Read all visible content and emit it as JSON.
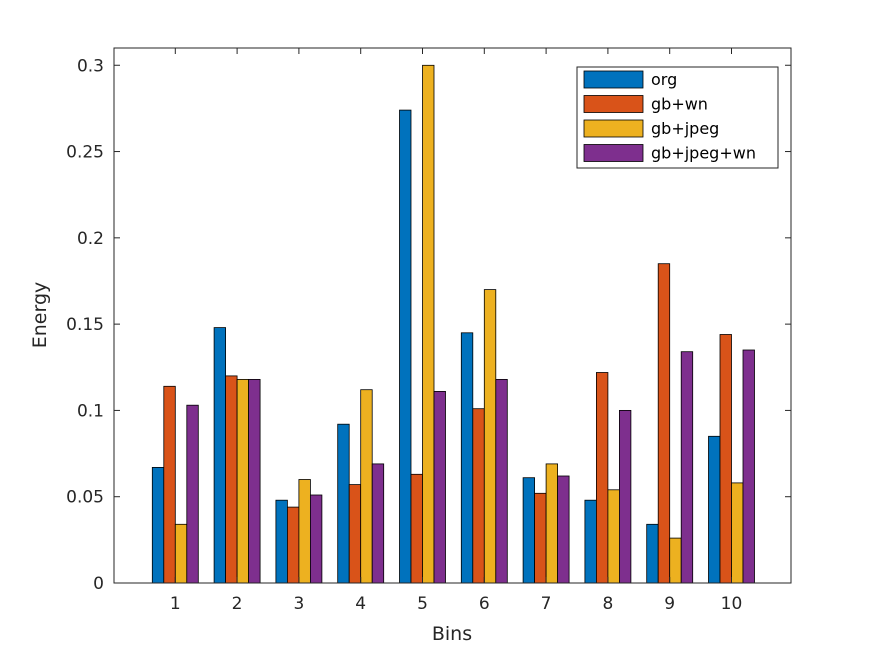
{
  "chart_data": {
    "type": "bar",
    "title": "",
    "xlabel": "Bins",
    "ylabel": "Energy",
    "categories": [
      "1",
      "2",
      "3",
      "4",
      "5",
      "6",
      "7",
      "8",
      "9",
      "10"
    ],
    "ylim": [
      0,
      0.31
    ],
    "yticks": [
      0,
      0.05,
      0.1,
      0.15,
      0.2,
      0.25,
      0.3
    ],
    "ytick_labels": [
      "0",
      "0.05",
      "0.1",
      "0.15",
      "0.2",
      "0.25",
      "0.3"
    ],
    "grid": false,
    "legend_position": "top-right",
    "series": [
      {
        "name": "org",
        "color": "#0072BD",
        "values": [
          0.067,
          0.148,
          0.048,
          0.092,
          0.274,
          0.145,
          0.061,
          0.048,
          0.034,
          0.085
        ]
      },
      {
        "name": "gb+wn",
        "color": "#D95319",
        "values": [
          0.114,
          0.12,
          0.044,
          0.057,
          0.063,
          0.101,
          0.052,
          0.122,
          0.185,
          0.144
        ]
      },
      {
        "name": "gb+jpeg",
        "color": "#EDB120",
        "values": [
          0.034,
          0.118,
          0.06,
          0.112,
          0.3,
          0.17,
          0.069,
          0.054,
          0.026,
          0.058
        ]
      },
      {
        "name": "gb+jpeg+wn",
        "color": "#7E2F8E",
        "values": [
          0.103,
          0.118,
          0.051,
          0.069,
          0.111,
          0.118,
          0.062,
          0.1,
          0.134,
          0.135
        ]
      }
    ]
  }
}
